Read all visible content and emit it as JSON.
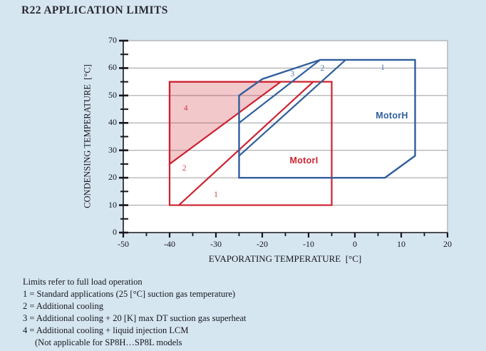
{
  "title": "R22 APPLICATION LIMITS",
  "colors": {
    "background": "#d6e6f1",
    "plot_background": "#ffffff",
    "grid": "#9b9ba0",
    "axis": "#16161c",
    "motor_i_red": "#cc2231",
    "motor_h_blue": "#2f5f9c",
    "region4_fill": "rgba(204,34,49,0.25)"
  },
  "chart_data": {
    "type": "area",
    "title": "R22 APPLICATION LIMITS",
    "grid": "horizontal-only",
    "legend": "none",
    "x_axis": {
      "label": "EVAPORATING TEMPERATURE  [°C]",
      "min": -50,
      "max": 20,
      "major_step": 10,
      "minor_step": 5,
      "tick_labels": [
        -50,
        -40,
        -30,
        -20,
        -10,
        0,
        10,
        20
      ]
    },
    "y_axis": {
      "label": "CONDENSING TEMPERATURE  [°C]",
      "min": 0,
      "max": 70,
      "major_step": 10,
      "minor_step": 5,
      "tick_labels": [
        0,
        10,
        20,
        30,
        40,
        50,
        60,
        70
      ]
    },
    "series": [
      {
        "name": "MotorI operating envelope",
        "color": "#cc2231",
        "width": 2.2,
        "closed": true,
        "fill": "none",
        "points": [
          [
            -40,
            10
          ],
          [
            -40,
            55
          ],
          [
            -5,
            55
          ],
          [
            -5,
            10
          ]
        ]
      },
      {
        "name": "Region 4 additional cooling + liquid injection (shaded)",
        "color": "#cc2231",
        "width": 2.2,
        "closed": true,
        "fill": "rgba(204,34,49,0.25)",
        "points": [
          [
            -40,
            25
          ],
          [
            -40,
            55
          ],
          [
            -16,
            55
          ]
        ]
      },
      {
        "name": "MotorI boundary between regions 1 and 2",
        "color": "#cc2231",
        "width": 2.2,
        "closed": false,
        "fill": "none",
        "points": [
          [
            -38,
            10
          ],
          [
            -9,
            55
          ]
        ]
      },
      {
        "name": "MotorH operating envelope",
        "color": "#2f5f9c",
        "width": 2.4,
        "closed": true,
        "fill": "none",
        "points": [
          [
            -25,
            20
          ],
          [
            -25,
            50
          ],
          [
            -20,
            56
          ],
          [
            -7.5,
            63
          ],
          [
            13,
            63
          ],
          [
            13,
            28
          ],
          [
            6.5,
            20
          ]
        ]
      },
      {
        "name": "MotorH boundary between regions 2 and 3",
        "color": "#2f5f9c",
        "width": 2.2,
        "closed": false,
        "fill": "none",
        "points": [
          [
            -25,
            40
          ],
          [
            -7.5,
            63
          ]
        ]
      },
      {
        "name": "MotorH boundary between regions 1 and 2",
        "color": "#2f5f9c",
        "width": 2.2,
        "closed": false,
        "fill": "none",
        "points": [
          [
            -25,
            28
          ],
          [
            -2,
            63
          ]
        ]
      }
    ],
    "point_labels": [
      {
        "text": "4",
        "x": -36.5,
        "y": 45.3,
        "color": "#cc2231",
        "style": "num"
      },
      {
        "text": "2",
        "x": -36.8,
        "y": 23.3,
        "color": "#cc2231",
        "style": "num"
      },
      {
        "text": "1",
        "x": -30,
        "y": 13.8,
        "color": "#cc2231",
        "style": "num"
      },
      {
        "text": "3",
        "x": -13.5,
        "y": 57.8,
        "color": "#2f5f9c",
        "style": "num"
      },
      {
        "text": "2",
        "x": -7,
        "y": 59.8,
        "color": "#2f5f9c",
        "style": "num"
      },
      {
        "text": "1",
        "x": 6,
        "y": 60,
        "color": "#2f5f9c",
        "style": "num"
      },
      {
        "text": "MotorI",
        "x": -11,
        "y": 26.3,
        "color": "#cc2231",
        "style": "motor"
      },
      {
        "text": "MotorH",
        "x": 8,
        "y": 42.8,
        "color": "#2f5f9c",
        "style": "motor"
      }
    ]
  },
  "footer": {
    "lines": [
      "Limits refer to full load operation",
      "1 = Standard applications (25 [°C] suction gas temperature)",
      "2 = Additional cooling",
      "3 = Additional cooling + 20 [K] max DT suction gas superheat",
      "4 = Additional cooling + liquid injection LCM",
      "(Not applicable for SP8H…SP8L models"
    ]
  }
}
